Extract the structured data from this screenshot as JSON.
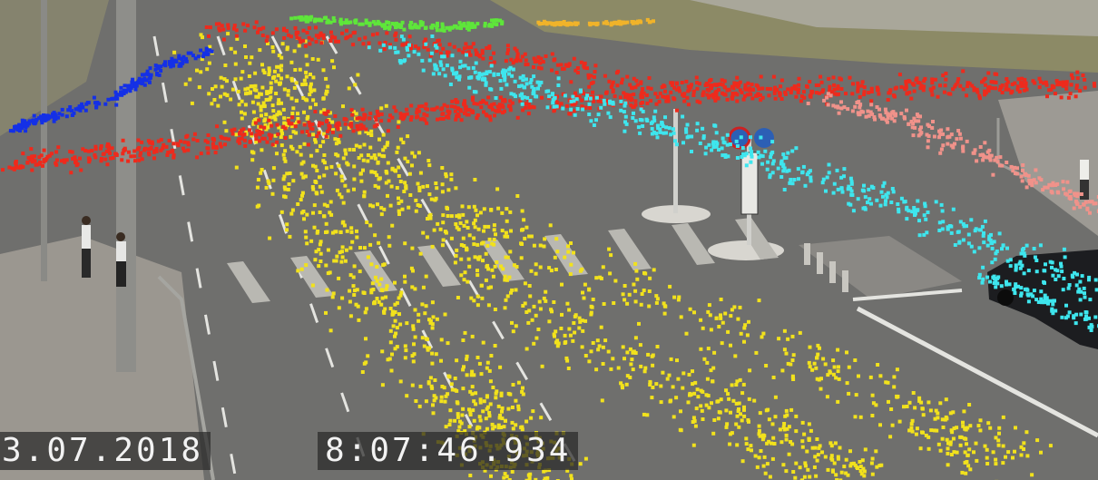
{
  "overlay": {
    "date": "3.07.2018",
    "time": "8:07:46.934"
  },
  "trajectory_colors": {
    "yellow": "#f2e21c",
    "red": "#ee2a1c",
    "cyan": "#3ee6ee",
    "blue": "#1430e6",
    "green": "#5ee63a",
    "orange": "#f0b32a",
    "pink": "#f0928a"
  },
  "scene_colors": {
    "road": "#707070",
    "sidewalk": "#9a9690",
    "grass": "#8a8a5a",
    "marking": "#e6e6e2"
  }
}
